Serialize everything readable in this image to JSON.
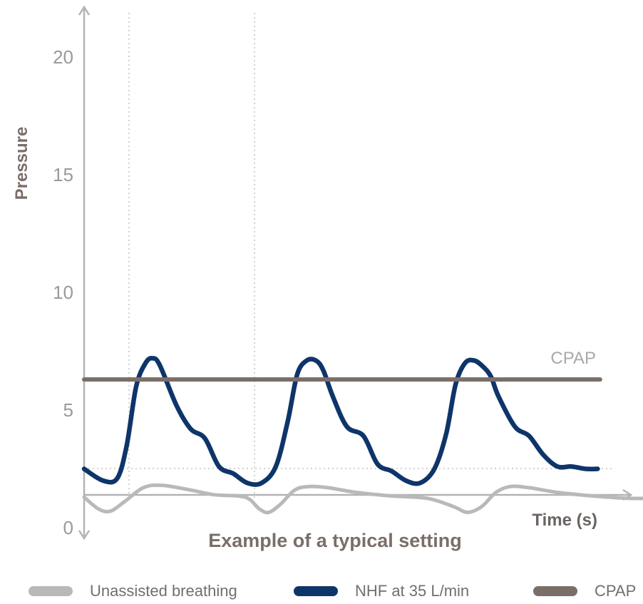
{
  "chart_data": {
    "type": "line",
    "subtitle": "Example of a typical setting",
    "xlabel": "Time (s)",
    "ylabel": "Pressure",
    "ylim": [
      0,
      22
    ],
    "yticks": [
      0,
      5,
      10,
      15,
      20
    ],
    "grid": false,
    "annotations": [
      {
        "text": "CPAP"
      }
    ],
    "series": [
      {
        "name": "Unassisted breathing",
        "color": "#b9b9b9",
        "x": [
          0,
          0.12,
          0.22,
          0.34,
          0.5,
          0.66,
          0.9,
          1.1,
          1.36,
          1.48,
          1.56,
          1.66,
          1.78,
          1.9,
          2.06,
          2.3,
          2.6,
          2.9,
          3.12,
          3.24,
          3.36,
          3.48,
          3.6,
          3.76,
          4.0,
          4.3,
          4.6,
          4.86
        ],
        "y": [
          1.3,
          0.8,
          0.7,
          1.1,
          1.7,
          1.8,
          1.6,
          1.4,
          1.3,
          0.8,
          0.65,
          1.0,
          1.6,
          1.75,
          1.7,
          1.5,
          1.35,
          1.25,
          0.9,
          0.65,
          0.9,
          1.5,
          1.75,
          1.7,
          1.5,
          1.35,
          1.25,
          1.25
        ]
      },
      {
        "name": "NHF at 35 L/min",
        "color": "#0e3569",
        "x": [
          0,
          0.16,
          0.28,
          0.36,
          0.44,
          0.52,
          0.58,
          0.64,
          0.78,
          0.9,
          1.02,
          1.14,
          1.26,
          1.38,
          1.5,
          1.62,
          1.72,
          1.8,
          1.88,
          1.96,
          2.02,
          2.1,
          2.22,
          2.36,
          2.48,
          2.6,
          2.72,
          2.84,
          2.96,
          3.06,
          3.14,
          3.22,
          3.3,
          3.38,
          3.44,
          3.5,
          3.64,
          3.76,
          3.88,
          4.0,
          4.12,
          4.24,
          4.34
        ],
        "y": [
          2.5,
          2.0,
          2.1,
          3.5,
          6.0,
          7.0,
          7.2,
          6.9,
          5.2,
          4.2,
          3.8,
          2.6,
          2.3,
          1.9,
          1.9,
          2.6,
          4.5,
          6.5,
          7.1,
          7.1,
          6.7,
          5.6,
          4.3,
          3.9,
          2.7,
          2.4,
          2.0,
          1.9,
          2.5,
          4.0,
          6.1,
          7.0,
          7.1,
          6.8,
          6.4,
          5.6,
          4.3,
          3.9,
          3.1,
          2.6,
          2.6,
          2.5,
          2.5
        ]
      },
      {
        "name": "CPAP",
        "color": "#7a6e69",
        "x": [
          0,
          4.36
        ],
        "y": [
          6.3,
          6.3
        ]
      }
    ]
  }
}
